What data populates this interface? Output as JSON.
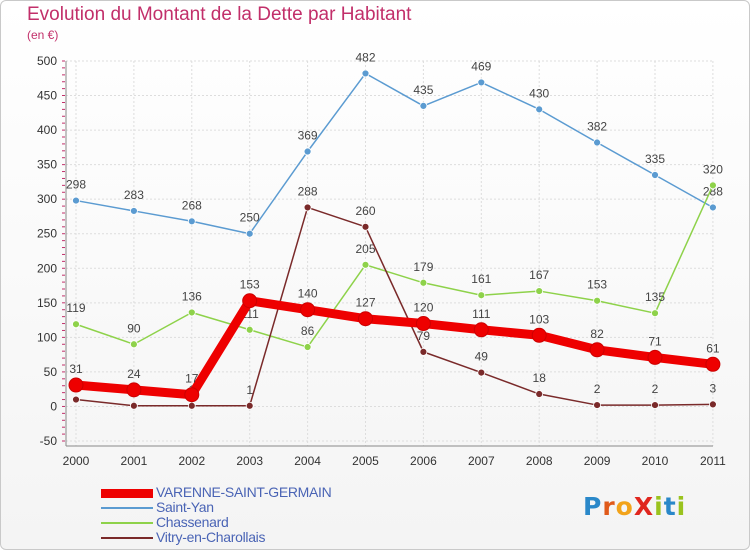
{
  "header": {
    "title": "Evolution du Montant de la Dette par Habitant",
    "subtitle": "(en €)"
  },
  "logo": {
    "text": "ProXiti",
    "letters": [
      "P",
      "r",
      "o",
      "X",
      "i",
      "t",
      "i"
    ],
    "colors": [
      "#2a88c9",
      "#e05a1a",
      "#f2a31a",
      "#e0261e",
      "#9ac31e",
      "#2a88c9",
      "#9ac31e"
    ]
  },
  "colors": {
    "title": "#c22f6a",
    "grid": "#dddddd",
    "axis": "#888888",
    "legend_text": "#4a64b5"
  },
  "chart_data": {
    "type": "line",
    "title": "Evolution du Montant de la Dette par Habitant",
    "ylabel": "(en €)",
    "xlabel": "",
    "categories": [
      "2000",
      "2001",
      "2002",
      "2003",
      "2004",
      "2005",
      "2006",
      "2007",
      "2008",
      "2009",
      "2010",
      "2011"
    ],
    "ylim": [
      -50,
      500
    ],
    "yticks": [
      -50,
      0,
      50,
      100,
      150,
      200,
      250,
      300,
      350,
      400,
      450,
      500
    ],
    "grid": true,
    "legend_position": "bottom-left",
    "series": [
      {
        "name": "Saint-Yan",
        "color": "#5b9bd1",
        "values": [
          298,
          283,
          268,
          250,
          369,
          482,
          435,
          469,
          430,
          382,
          335,
          288
        ],
        "labels": [
          "298",
          "283",
          "268",
          "250",
          "369",
          "482",
          "435",
          "469",
          "430",
          "382",
          "335",
          "288"
        ]
      },
      {
        "name": "Chassenard",
        "color": "#8ed24a",
        "values": [
          119,
          90,
          136,
          111,
          86,
          205,
          179,
          161,
          167,
          153,
          135,
          320
        ],
        "labels": [
          "119",
          "90",
          "136",
          "111",
          "86",
          "205",
          "179",
          "161",
          "167",
          "153",
          "135",
          "320"
        ]
      },
      {
        "name": "Vitry-en-Charollais",
        "color": "#7a2a2a",
        "values": [
          10,
          1,
          1,
          1,
          288,
          260,
          79,
          49,
          18,
          2,
          2,
          3
        ],
        "labels": [
          "10",
          "1",
          "1",
          "1",
          "288",
          "260",
          "79",
          "49",
          "18",
          "2",
          "2",
          "3"
        ]
      },
      {
        "name": "VARENNE-SAINT-GERMAIN",
        "color": "#ee0000",
        "values": [
          31,
          24,
          17,
          153,
          140,
          127,
          120,
          111,
          103,
          82,
          71,
          61
        ],
        "labels": [
          "31",
          "24",
          "17",
          "153",
          "140",
          "127",
          "120",
          "111",
          "103",
          "82",
          "71",
          "61"
        ]
      }
    ],
    "legend_order": [
      "VARENNE-SAINT-GERMAIN",
      "Saint-Yan",
      "Chassenard",
      "Vitry-en-Charollais"
    ]
  }
}
